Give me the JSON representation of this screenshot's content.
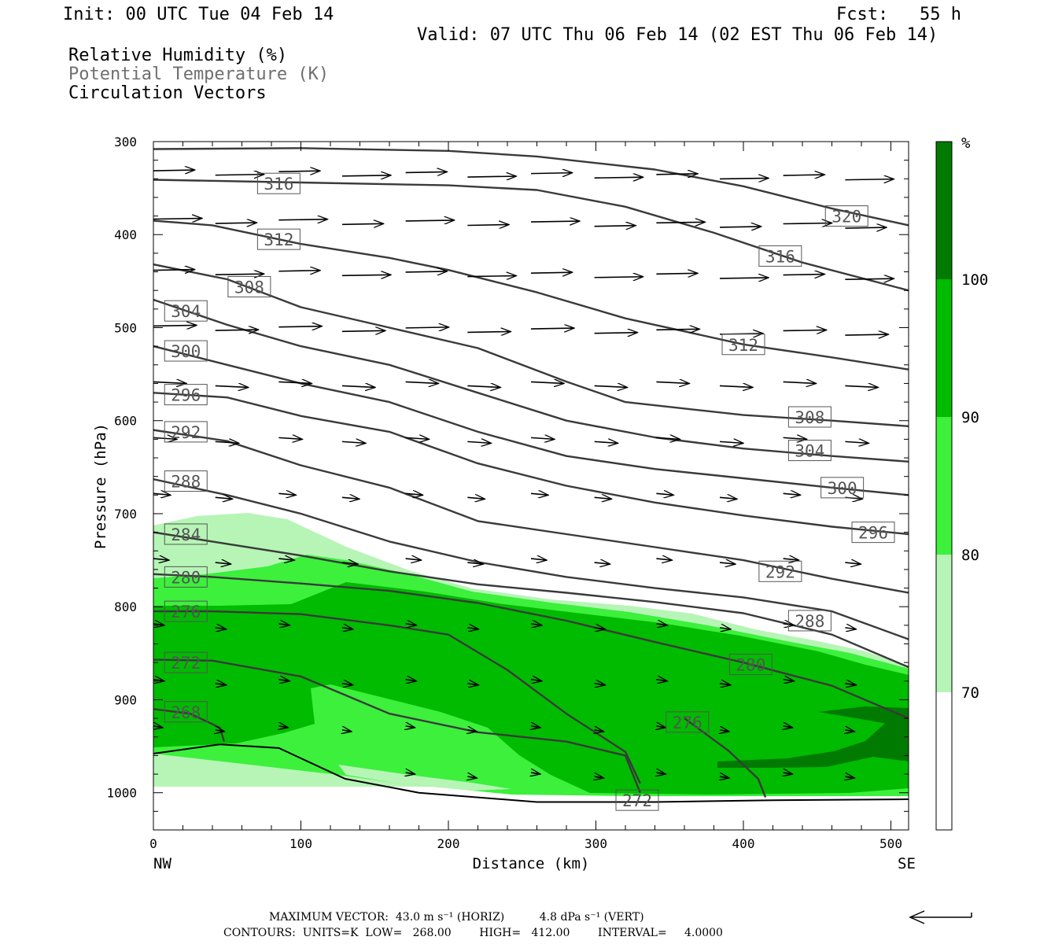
{
  "header": {
    "init": "Init: 00 UTC Tue 04 Feb 14",
    "fcst": "Fcst:   55 h",
    "valid": "Valid: 07 UTC Thu 06 Feb 14 (02 EST Thu 06 Feb 14)",
    "fields": [
      "Relative Humidity (%)",
      "Potential Temperature (K)",
      "Circulation Vectors"
    ]
  },
  "axes": {
    "ylabel": "Pressure (hPa)",
    "xlabel": "Distance (km)",
    "y_ticks": [
      "300",
      "400",
      "500",
      "600",
      "700",
      "800",
      "900",
      "1000"
    ],
    "x_ticks": [
      "0",
      "100",
      "200",
      "300",
      "400",
      "500"
    ],
    "left_end": "NW",
    "right_end": "SE"
  },
  "colorbar": {
    "unit": "%",
    "labels": [
      "100",
      "90",
      "80",
      "70"
    ],
    "colors": [
      "#007a00",
      "#00bb00",
      "#3cf03c",
      "#b6f5b6",
      "#ffffff"
    ]
  },
  "footer": {
    "max_vector": "MAXIMUM VECTOR:  43.0 m s⁻¹ (HORIZ)          4.8 dPa s⁻¹ (VERT)",
    "contours": "CONTOURS:  UNITS=K  LOW=   268.00        HIGH=   412.00        INTERVAL=     4.0000"
  },
  "chart_data": {
    "type": "cross-section",
    "xlim": [
      0,
      512
    ],
    "ylim": [
      1040,
      300
    ],
    "contour_field": "Potential Temperature (K)",
    "shaded_field": "Relative Humidity (%)",
    "shade_levels": [
      70,
      80,
      90,
      100
    ],
    "isentropes": [
      {
        "theta": 320,
        "x": [
          0,
          100,
          200,
          260,
          340,
          400,
          460,
          512
        ],
        "p": [
          308,
          307,
          310,
          316,
          330,
          348,
          372,
          390
        ],
        "labels": [
          [
            470,
            380
          ]
        ]
      },
      {
        "theta": 316,
        "x": [
          0,
          100,
          200,
          260,
          320,
          380,
          440,
          512
        ],
        "p": [
          341,
          344,
          347,
          352,
          370,
          398,
          430,
          460
        ],
        "labels": [
          [
            85,
            345
          ],
          [
            425,
            423
          ]
        ]
      },
      {
        "theta": 312,
        "x": [
          0,
          40,
          100,
          160,
          200,
          260,
          320,
          400,
          460,
          512
        ],
        "p": [
          385,
          390,
          410,
          425,
          438,
          462,
          490,
          518,
          532,
          545
        ],
        "labels": [
          [
            85,
            405
          ],
          [
            400,
            518
          ]
        ]
      },
      {
        "theta": 308,
        "x": [
          0,
          50,
          100,
          160,
          220,
          280,
          320,
          400,
          460,
          512
        ],
        "p": [
          432,
          448,
          478,
          500,
          522,
          558,
          580,
          594,
          600,
          606
        ],
        "labels": [
          [
            65,
            456
          ],
          [
            445,
            596
          ]
        ]
      },
      {
        "theta": 304,
        "x": [
          0,
          50,
          100,
          160,
          220,
          280,
          340,
          400,
          460,
          512
        ],
        "p": [
          470,
          497,
          520,
          540,
          570,
          600,
          618,
          630,
          638,
          644
        ],
        "labels": [
          [
            22,
            482
          ],
          [
            445,
            632
          ]
        ]
      },
      {
        "theta": 300,
        "x": [
          0,
          50,
          100,
          160,
          220,
          280,
          340,
          400,
          460,
          512
        ],
        "p": [
          520,
          540,
          560,
          580,
          612,
          638,
          652,
          662,
          672,
          680
        ],
        "labels": [
          [
            22,
            525
          ],
          [
            467,
            672
          ]
        ]
      },
      {
        "theta": 296,
        "x": [
          0,
          50,
          100,
          160,
          220,
          280,
          340,
          400,
          460,
          512
        ],
        "p": [
          570,
          575,
          595,
          612,
          646,
          670,
          688,
          702,
          714,
          722
        ],
        "labels": [
          [
            22,
            572
          ],
          [
            488,
            720
          ]
        ]
      },
      {
        "theta": 292,
        "x": [
          0,
          50,
          100,
          160,
          220,
          280,
          340,
          400,
          460,
          512
        ],
        "p": [
          610,
          622,
          648,
          672,
          708,
          722,
          736,
          750,
          770,
          785
        ],
        "labels": [
          [
            22,
            612
          ],
          [
            425,
            762
          ]
        ]
      },
      {
        "theta": 288,
        "x": [
          0,
          50,
          100,
          160,
          220,
          280,
          340,
          400,
          460,
          512
        ],
        "p": [
          663,
          680,
          700,
          730,
          752,
          768,
          780,
          790,
          805,
          835
        ],
        "labels": [
          [
            22,
            665
          ],
          [
            445,
            815
          ]
        ]
      },
      {
        "theta": 284,
        "x": [
          0,
          40,
          100,
          160,
          220,
          280,
          340,
          400,
          460,
          512
        ],
        "p": [
          720,
          730,
          745,
          762,
          776,
          785,
          795,
          807,
          830,
          865
        ],
        "labels": [
          [
            22,
            722
          ]
        ]
      },
      {
        "theta": 280,
        "x": [
          0,
          40,
          100,
          160,
          220,
          280,
          340,
          400,
          460,
          512
        ],
        "p": [
          765,
          768,
          775,
          783,
          796,
          815,
          838,
          860,
          885,
          920
        ],
        "labels": [
          [
            22,
            768
          ],
          [
            405,
            862
          ]
        ]
      },
      {
        "theta": 276,
        "x": [
          0,
          40,
          100,
          160,
          200,
          240,
          280,
          320,
          330
        ],
        "p": [
          805,
          805,
          808,
          820,
          830,
          868,
          915,
          956,
          990
        ],
        "labels": [
          [
            22,
            805
          ]
        ]
      },
      {
        "theta": 276,
        "x": [
          360,
          390,
          410,
          415
        ],
        "p": [
          920,
          955,
          985,
          1005
        ],
        "labels": [
          [
            362,
            924
          ]
        ]
      },
      {
        "theta": 272,
        "x": [
          0,
          40,
          100,
          160,
          220,
          280,
          320,
          330
        ],
        "p": [
          857,
          858,
          875,
          915,
          935,
          945,
          960,
          1000
        ],
        "labels": [
          [
            22,
            860
          ],
          [
            328,
            1008
          ]
        ]
      },
      {
        "theta": 268,
        "x": [
          0,
          25,
          45,
          48
        ],
        "p": [
          910,
          915,
          930,
          945
        ],
        "labels": [
          [
            22,
            913
          ]
        ]
      }
    ],
    "terrain": {
      "x": [
        0,
        45,
        85,
        130,
        180,
        260,
        340,
        420,
        512
      ],
      "p": [
        958,
        948,
        952,
        985,
        1000,
        1010,
        1010,
        1008,
        1007
      ]
    }
  }
}
